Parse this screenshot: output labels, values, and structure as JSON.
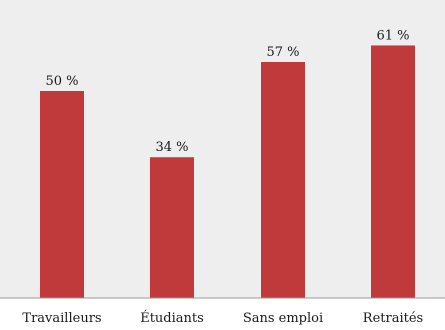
{
  "chart_data": {
    "type": "bar",
    "categories": [
      "Travailleurs",
      "Étudiants",
      "Sans emploi",
      "Retraités"
    ],
    "values": [
      50,
      34,
      57,
      61
    ],
    "value_labels": [
      "50 %",
      "34 %",
      "57 %",
      "61 %"
    ],
    "title": "",
    "xlabel": "",
    "ylabel": "",
    "ylim": [
      0,
      100
    ],
    "grid": false,
    "legend": "none",
    "bar_color": "#c0393b",
    "plot_background": "#eeeeee",
    "axis_color": "#999999"
  }
}
